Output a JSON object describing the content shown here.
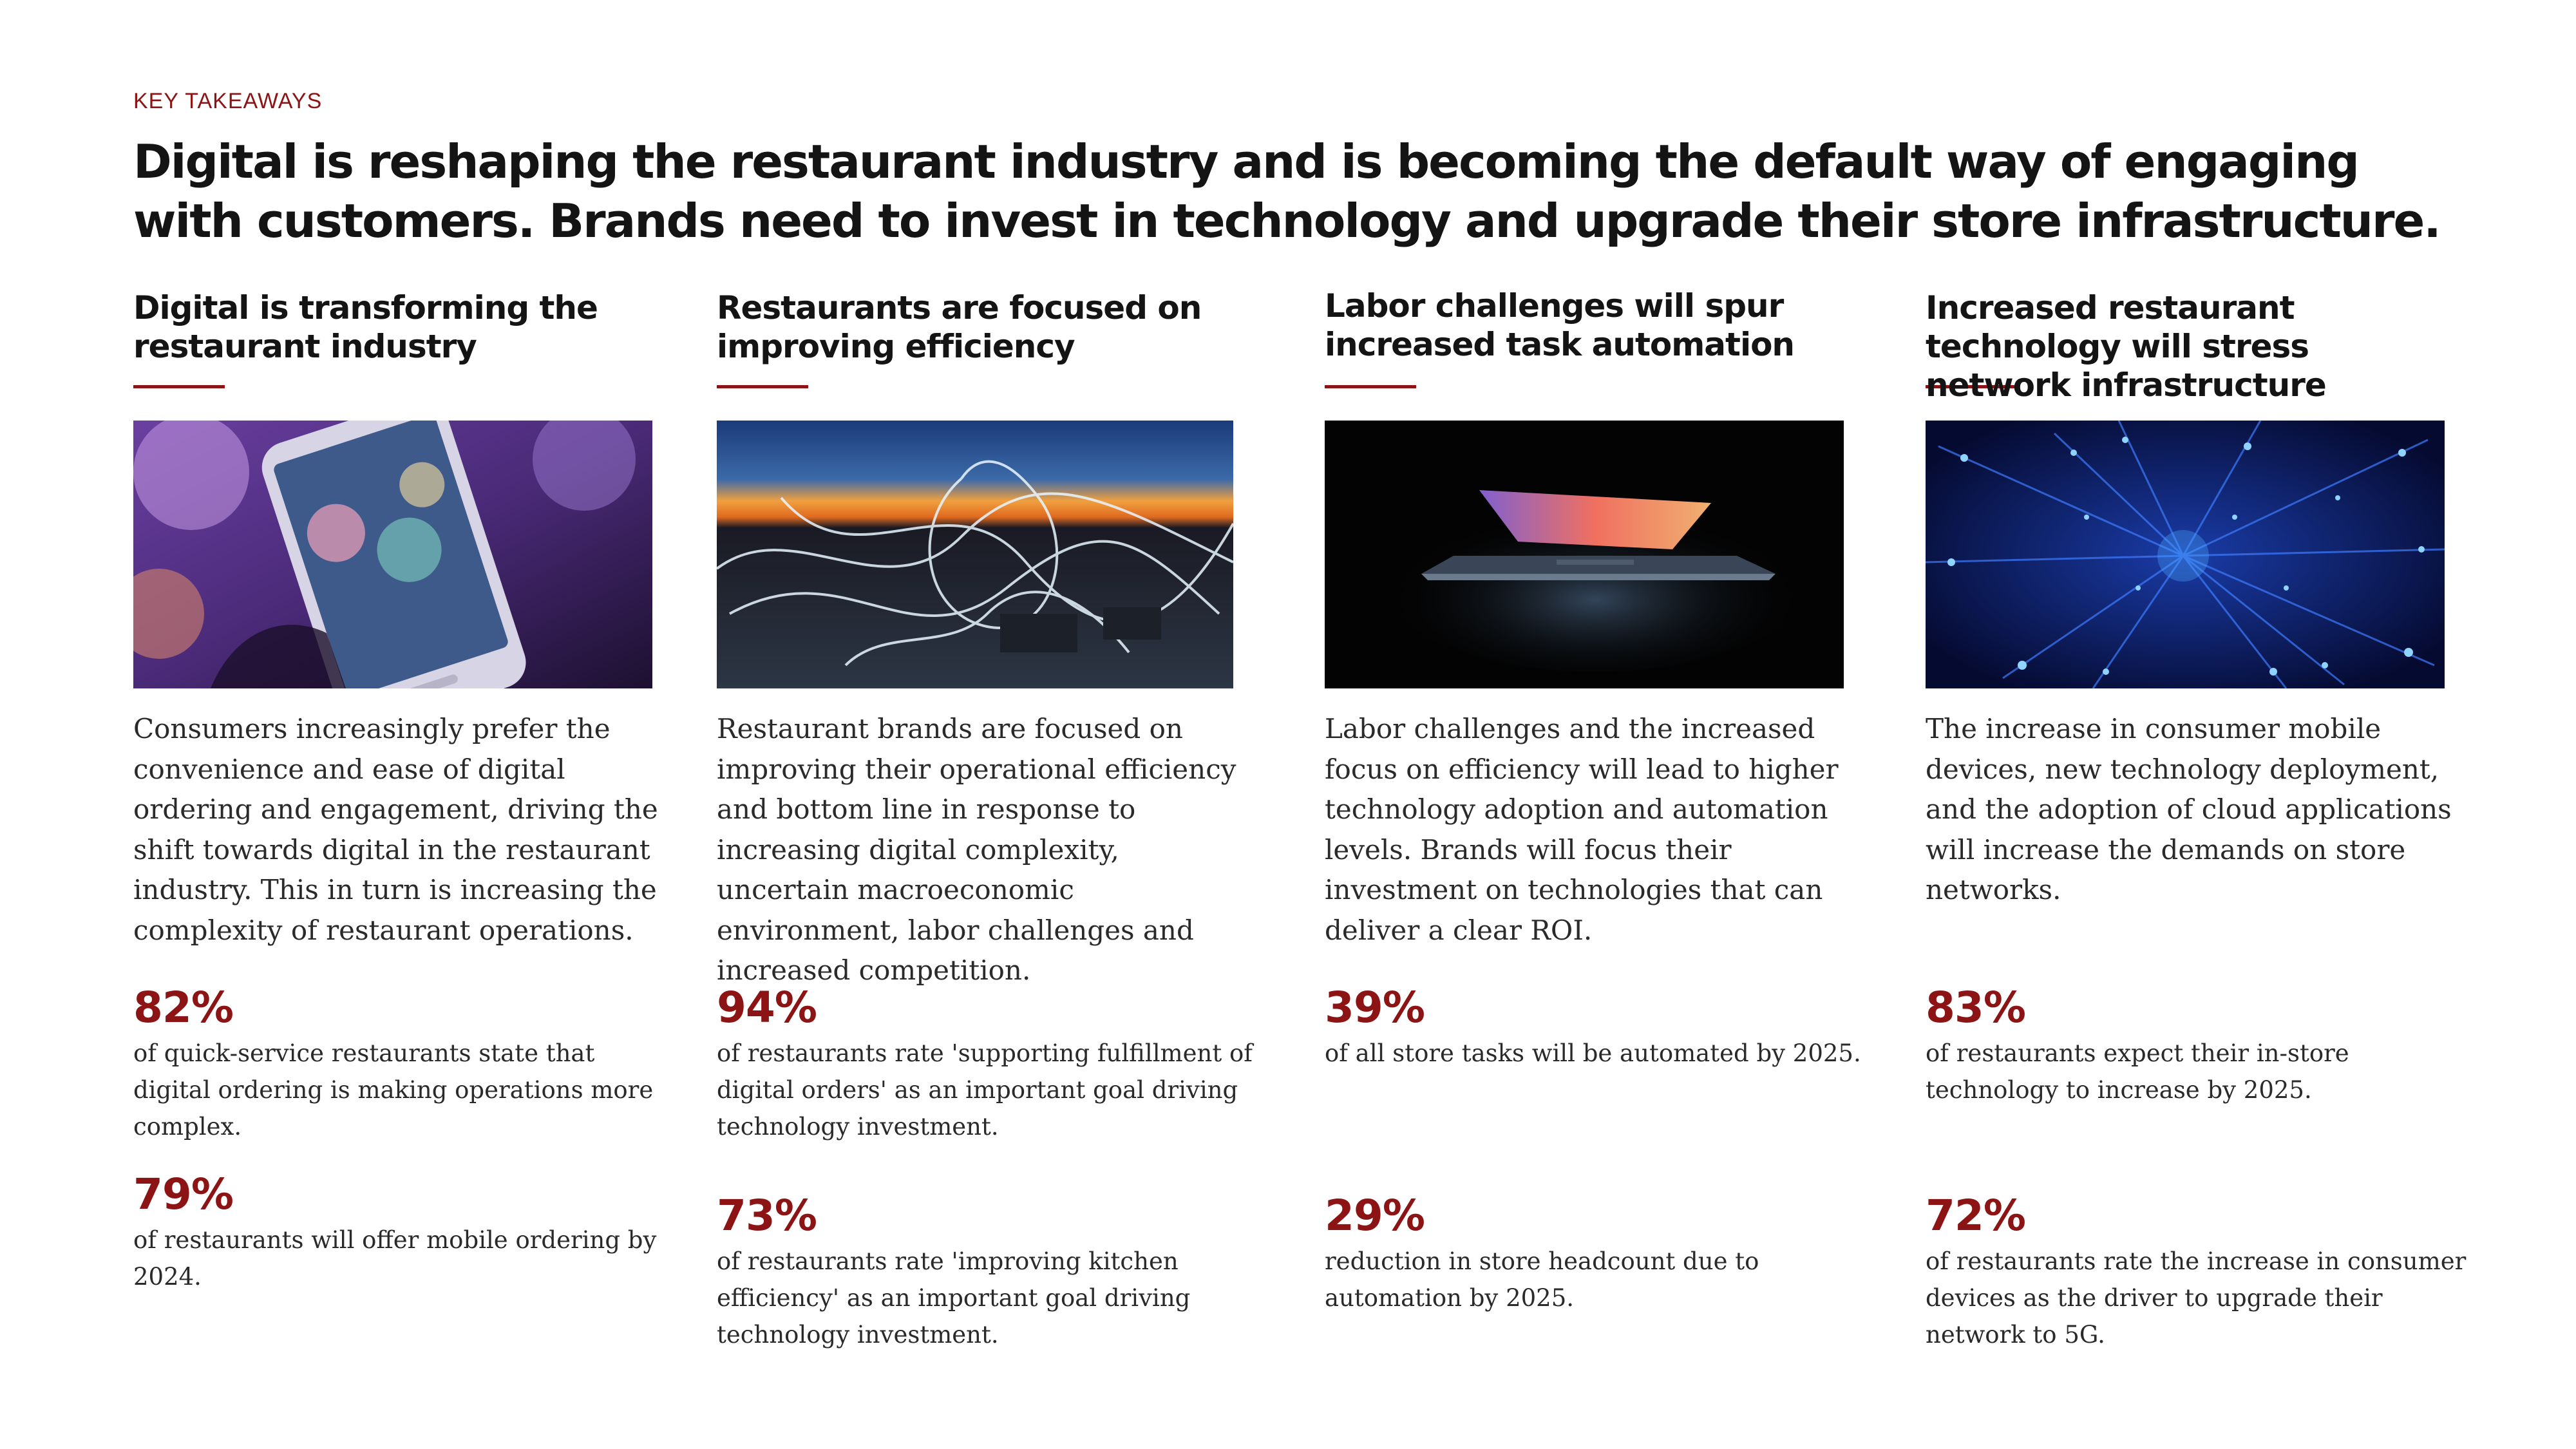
{
  "eyebrow": "KEY TAKEAWAYS",
  "headline": "Digital is reshaping the restaurant industry and is becoming the default way of engaging with customers. Brands need to invest in technology and upgrade their store infrastructure.",
  "colors": {
    "accent": "#8c1414",
    "heading": "#141414",
    "body": "#2a2a2a"
  },
  "columns": [
    {
      "title": "Digital is transforming the restaurant industry",
      "image": "smartphone-bokeh-photo",
      "body": "Consumers increasingly prefer the convenience and ease of digital ordering and engagement, driving the shift towards digital in the restaurant industry. This in turn is increasing the complexity of restaurant operations.",
      "stats": [
        {
          "value": "82%",
          "text": "of quick-service restaurants state that digital ordering is making operations more complex."
        },
        {
          "value": "79%",
          "text": "of restaurants will offer mobile ordering by 2024."
        }
      ]
    },
    {
      "title": "Restaurants are focused on improving efficiency",
      "image": "light-trails-sunset-photo",
      "body": "Restaurant brands are focused on improving their operational efficiency and bottom line in response to increasing digital complexity, uncertain macroeconomic environment, labor challenges and increased competition.",
      "stats": [
        {
          "value": "94%",
          "text": "of restaurants rate 'supporting fulfillment of digital orders' as an important goal driving technology investment."
        },
        {
          "value": "73%",
          "text": "of restaurants rate 'improving kitchen efficiency' as an important goal driving technology investment."
        }
      ]
    },
    {
      "title": "Labor challenges will spur increased task automation",
      "image": "glowing-laptop-photo",
      "body": "Labor challenges and the increased focus on efficiency will lead to higher technology adoption and automation levels. Brands will focus their investment on technologies that can deliver a clear ROI.",
      "stats": [
        {
          "value": "39%",
          "text": "of all store tasks will be automated by 2025."
        },
        {
          "value": "29%",
          "text": "reduction in store headcount due to automation by 2025."
        }
      ]
    },
    {
      "title": "Increased restaurant technology will stress network infrastructure",
      "image": "fiber-optic-network-photo",
      "body": "The increase in consumer mobile devices, new technology deployment, and the adoption of cloud applications will increase the demands on store networks.",
      "stats": [
        {
          "value": "83%",
          "text": "of restaurants expect their in-store technology to increase by 2025."
        },
        {
          "value": "72%",
          "text": "of restaurants rate the increase in consumer devices as the driver to upgrade their network to 5G."
        }
      ]
    }
  ]
}
